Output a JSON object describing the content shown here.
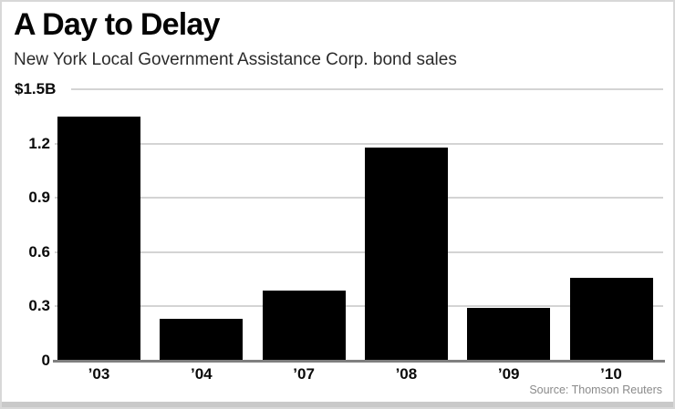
{
  "chart_data": {
    "type": "bar",
    "title": "A Day to Delay",
    "subtitle": "New York Local Government Assistance Corp. bond sales",
    "categories": [
      "’03",
      "’04",
      "’07",
      "’08",
      "’09",
      "’10"
    ],
    "values": [
      1.35,
      0.23,
      0.39,
      1.18,
      0.29,
      0.46
    ],
    "ylim": [
      0,
      1.5
    ],
    "yticks": [
      0,
      0.3,
      0.6,
      0.9,
      1.2,
      1.5
    ],
    "ytick_labels": [
      "0",
      "0.3",
      "0.6",
      "0.9",
      "1.2",
      "$1.5B"
    ],
    "bar_color": "#000000",
    "grid": true,
    "legend": "none",
    "source": "Source: Thomson Reuters"
  }
}
